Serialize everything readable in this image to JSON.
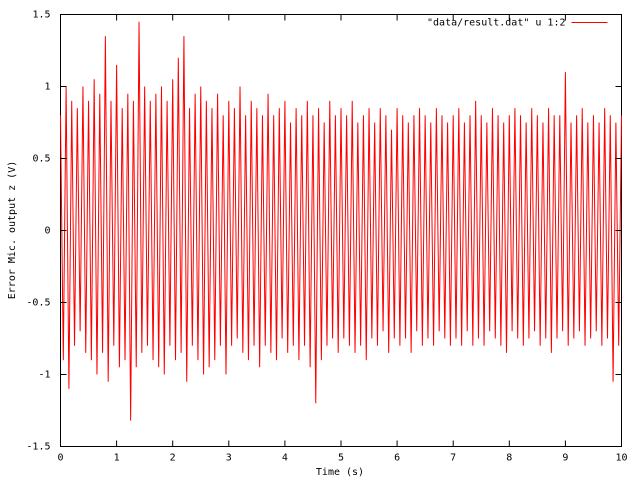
{
  "chart_data": {
    "type": "line",
    "xlabel": "Time (s)",
    "ylabel": "Error Mic. output z (V)",
    "legend": "top right",
    "grid": false,
    "xlim": [
      0,
      10
    ],
    "xticks": [
      0,
      1,
      2,
      3,
      4,
      5,
      6,
      7,
      8,
      9,
      10
    ],
    "ylim": [
      -1.5,
      1.5
    ],
    "yticks": [
      -1.5,
      -1,
      -0.5,
      0,
      0.5,
      1,
      1.5
    ],
    "x": [
      0,
      0.05,
      0.1,
      0.15,
      0.2,
      0.25,
      0.3,
      0.35,
      0.4,
      0.45,
      0.5,
      0.55,
      0.6,
      0.65,
      0.7,
      0.75,
      0.8,
      0.85,
      0.9,
      0.95,
      1,
      1.05,
      1.1,
      1.15,
      1.2,
      1.25,
      1.3,
      1.35,
      1.4,
      1.45,
      1.5,
      1.55,
      1.6,
      1.65,
      1.7,
      1.75,
      1.8,
      1.85,
      1.9,
      1.95,
      2,
      2.05,
      2.1,
      2.15,
      2.2,
      2.25,
      2.3,
      2.35,
      2.4,
      2.45,
      2.5,
      2.55,
      2.6,
      2.65,
      2.7,
      2.75,
      2.8,
      2.85,
      2.9,
      2.95,
      3,
      3.05,
      3.1,
      3.15,
      3.2,
      3.25,
      3.3,
      3.35,
      3.4,
      3.45,
      3.5,
      3.55,
      3.6,
      3.65,
      3.7,
      3.75,
      3.8,
      3.85,
      3.9,
      3.95,
      4,
      4.05,
      4.1,
      4.15,
      4.2,
      4.25,
      4.3,
      4.35,
      4.4,
      4.45,
      4.5,
      4.55,
      4.6,
      4.65,
      4.7,
      4.75,
      4.8,
      4.85,
      4.9,
      4.95,
      5,
      5.05,
      5.1,
      5.15,
      5.2,
      5.25,
      5.3,
      5.35,
      5.4,
      5.45,
      5.5,
      5.55,
      5.6,
      5.65,
      5.7,
      5.75,
      5.8,
      5.85,
      5.9,
      5.95,
      6,
      6.05,
      6.1,
      6.15,
      6.2,
      6.25,
      6.3,
      6.35,
      6.4,
      6.45,
      6.5,
      6.55,
      6.6,
      6.65,
      6.7,
      6.75,
      6.8,
      6.85,
      6.9,
      6.95,
      7,
      7.05,
      7.1,
      7.15,
      7.2,
      7.25,
      7.3,
      7.35,
      7.4,
      7.45,
      7.5,
      7.55,
      7.6,
      7.65,
      7.7,
      7.75,
      7.8,
      7.85,
      7.9,
      7.95,
      8,
      8.05,
      8.1,
      8.15,
      8.2,
      8.25,
      8.3,
      8.35,
      8.4,
      8.45,
      8.5,
      8.55,
      8.6,
      8.65,
      8.7,
      8.75,
      8.8,
      8.85,
      8.9,
      8.95,
      9,
      9.05,
      9.1,
      9.15,
      9.2,
      9.25,
      9.3,
      9.35,
      9.4,
      9.45,
      9.5,
      9.55,
      9.6,
      9.65,
      9.7,
      9.75,
      9.8,
      9.85,
      9.9,
      9.95,
      10
    ],
    "series": [
      {
        "name": "\"data/result.dat\" u 1:2",
        "color": "#ff0000",
        "values": [
          0.8,
          -0.9,
          1.0,
          -1.1,
          0.9,
          -0.8,
          0.85,
          -0.7,
          1.0,
          -0.85,
          0.9,
          -0.9,
          1.05,
          -1.0,
          0.95,
          -0.85,
          1.35,
          -1.05,
          0.9,
          -0.8,
          1.15,
          -0.95,
          0.85,
          -0.9,
          0.95,
          -1.32,
          0.9,
          -0.95,
          1.45,
          -0.85,
          1.0,
          -0.8,
          0.9,
          -0.9,
          0.95,
          -0.95,
          1.0,
          -1.0,
          0.9,
          -0.8,
          1.05,
          -0.9,
          1.2,
          -0.85,
          1.35,
          -1.05,
          0.85,
          -0.8,
          0.95,
          -0.9,
          1.0,
          -1.0,
          0.9,
          -0.95,
          0.85,
          -0.9,
          0.95,
          -0.8,
          0.8,
          -1.0,
          0.9,
          -0.8,
          0.85,
          -0.75,
          1.0,
          -0.85,
          0.8,
          -0.9,
          0.9,
          -0.8,
          0.85,
          -0.95,
          0.8,
          -0.8,
          0.95,
          -0.85,
          0.8,
          -0.9,
          0.85,
          -0.75,
          0.9,
          -0.85,
          0.75,
          -0.8,
          0.85,
          -0.9,
          0.8,
          -0.8,
          0.9,
          -0.95,
          0.8,
          -1.2,
          0.85,
          -0.9,
          0.75,
          -0.8,
          0.9,
          -0.75,
          0.8,
          -0.85,
          0.85,
          -0.75,
          0.8,
          -0.8,
          0.9,
          -0.85,
          0.75,
          -0.8,
          0.8,
          -0.9,
          0.85,
          -0.75,
          0.75,
          -0.8,
          0.85,
          -0.7,
          0.8,
          -0.85,
          0.7,
          -0.75,
          0.85,
          -0.8,
          0.8,
          -0.75,
          0.75,
          -0.85,
          0.8,
          -0.7,
          0.85,
          -0.8,
          0.8,
          -0.75,
          0.75,
          -0.8,
          0.85,
          -0.7,
          0.8,
          -0.75,
          0.75,
          -0.8,
          0.8,
          -0.75,
          0.85,
          -0.8,
          0.75,
          -0.7,
          0.8,
          -0.8,
          0.9,
          -0.75,
          0.8,
          -0.8,
          0.75,
          -0.7,
          0.85,
          -0.75,
          0.8,
          -0.8,
          0.75,
          -0.85,
          0.8,
          -0.7,
          0.85,
          -0.75,
          0.8,
          -0.8,
          0.75,
          -0.75,
          0.85,
          -0.7,
          0.8,
          -0.8,
          0.75,
          -0.75,
          0.85,
          -0.85,
          0.8,
          -0.75,
          0.8,
          -0.7,
          1.1,
          -0.8,
          0.75,
          -0.75,
          0.8,
          -0.7,
          0.85,
          -0.8,
          0.75,
          -0.75,
          0.8,
          -0.7,
          0.75,
          -0.8,
          0.85,
          -0.75,
          0.8,
          -1.05,
          0.75,
          -0.8,
          0.8
        ]
      }
    ]
  }
}
